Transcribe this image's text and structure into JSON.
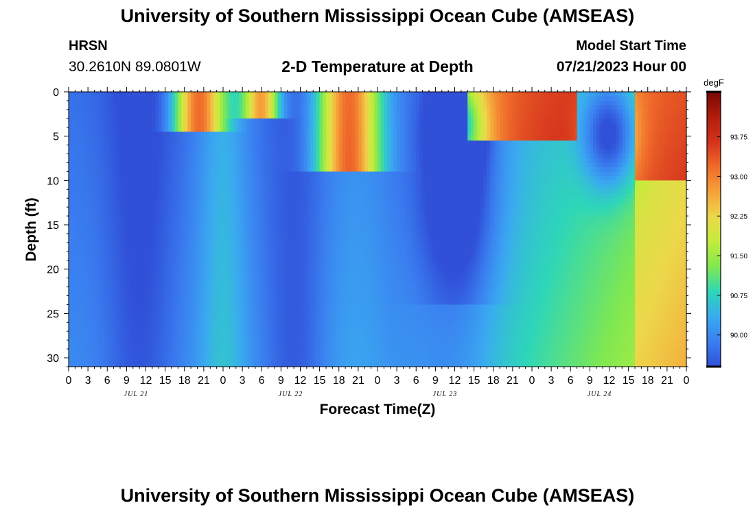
{
  "header": {
    "title": "University of Southern Mississippi Ocean Cube (AMSEAS)",
    "station": "HRSN",
    "coords": "30.2610N  89.0801W",
    "plot_title": "2-D Temperature at Depth",
    "start_label": "Model Start Time",
    "start_value": "07/21/2023 Hour 00"
  },
  "footer": {
    "title": "University of Southern Mississippi Ocean Cube (AMSEAS)"
  },
  "chart_data": {
    "type": "heatmap",
    "title": "2-D Temperature at Depth",
    "xlabel": "Forecast Time(Z)",
    "ylabel": "Depth (ft)",
    "x_range_hours": [
      0,
      96
    ],
    "x_ticks": [
      "0",
      "3",
      "6",
      "9",
      "12",
      "15",
      "18",
      "21",
      "0",
      "3",
      "6",
      "9",
      "12",
      "15",
      "18",
      "21",
      "0",
      "3",
      "6",
      "9",
      "12",
      "15",
      "18",
      "21",
      "0",
      "3",
      "6",
      "9",
      "12",
      "15",
      "18",
      "21",
      "0"
    ],
    "date_labels": [
      "JUL 21",
      "JUL 22",
      "JUL 23",
      "JUL 24"
    ],
    "y_range_ft": [
      0,
      31
    ],
    "y_ticks": [
      "0",
      "5",
      "10",
      "15",
      "20",
      "25",
      "30"
    ],
    "colorbar_unit": "degF",
    "colorbar_range": [
      89.4,
      94.6
    ],
    "colorbar_ticks": [
      "93.75",
      "93.00",
      "92.25",
      "91.50",
      "90.75",
      "90.00"
    ],
    "colors": {
      "scale": [
        "#3050d8",
        "#3a7ef0",
        "#3aaaf0",
        "#2ed6b8",
        "#80e850",
        "#c4ec3c",
        "#ecd84a",
        "#f6a23a",
        "#ef6a2a",
        "#d4321c",
        "#b01e0c",
        "#7a0606"
      ]
    }
  }
}
